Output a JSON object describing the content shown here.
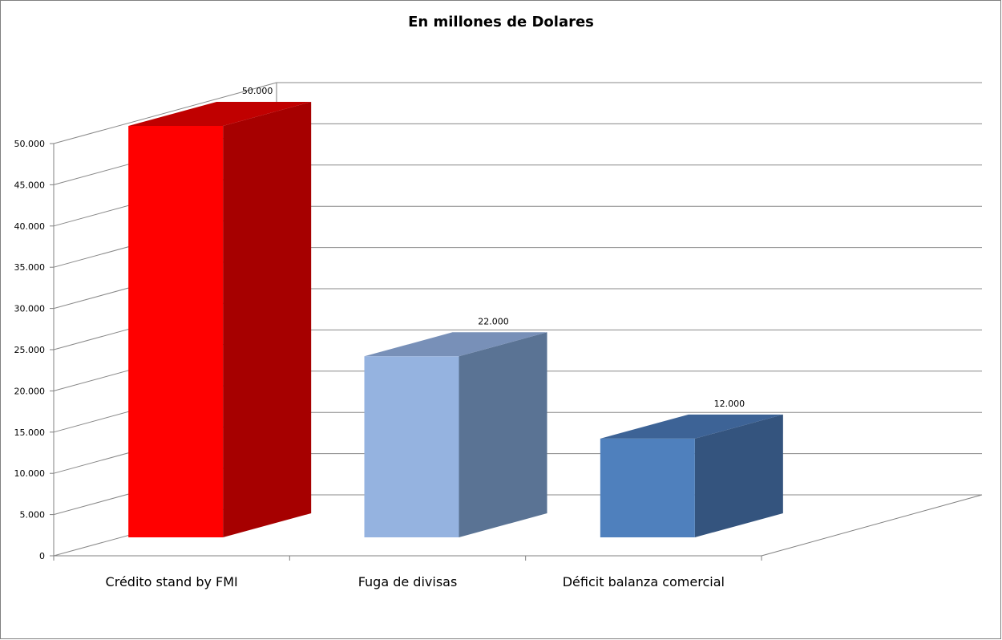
{
  "chart_data": {
    "type": "bar",
    "title": "En millones de Dolares",
    "categories": [
      "Crédito stand by FMI",
      "Fuga de divisas",
      "Déficit balanza comercial"
    ],
    "series": [
      {
        "values": [
          50000,
          22000,
          12000
        ]
      }
    ],
    "data_labels": [
      "50.000",
      "22.000",
      "12.000"
    ],
    "yticks": [
      "0",
      "5.000",
      "10.000",
      "15.000",
      "20.000",
      "25.000",
      "30.000",
      "35.000",
      "40.000",
      "45.000",
      "50.000"
    ],
    "ylim": [
      0,
      50000
    ],
    "grid": true,
    "legend": "none",
    "three_d": true,
    "colors": {
      "front": [
        "#ff0000",
        "#95b3e0",
        "#4f80bd"
      ],
      "side": [
        "#a60000",
        "#5a7394",
        "#34547e"
      ],
      "top": [
        "#c00000",
        "#7890b8",
        "#3d6396"
      ],
      "grid": "#888888",
      "frame": "#808080"
    }
  }
}
